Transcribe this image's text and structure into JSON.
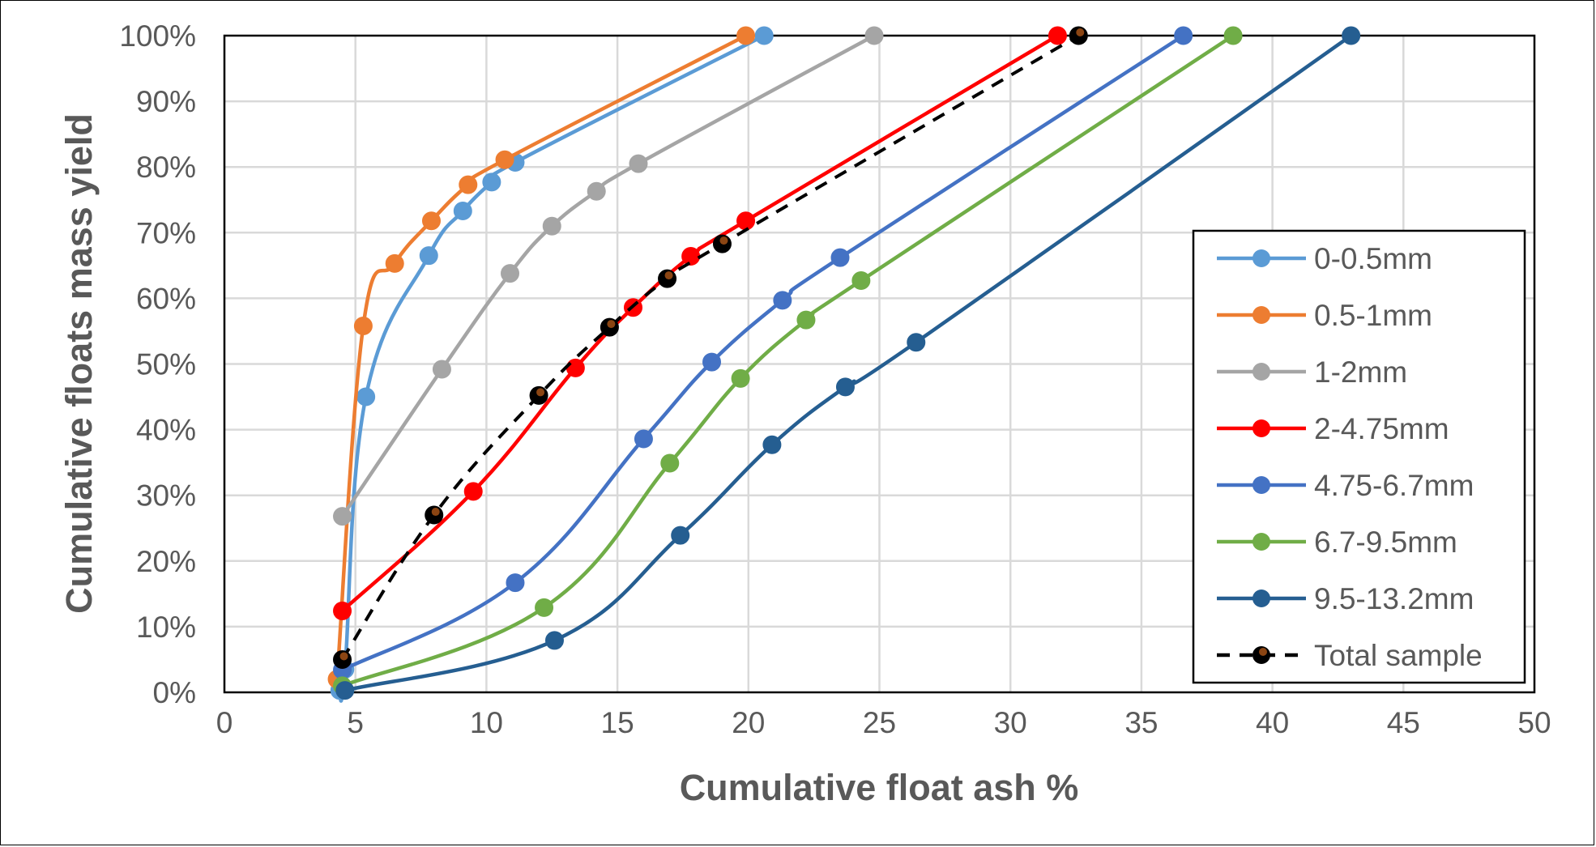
{
  "chart_data": {
    "type": "line",
    "xlabel": "Cumulative float ash %",
    "ylabel": "Cumulative floats mass yield",
    "xlim": [
      0,
      50
    ],
    "ylim": [
      0,
      100
    ],
    "x_ticks": [
      "0",
      "5",
      "10",
      "15",
      "20",
      "25",
      "30",
      "35",
      "40",
      "45",
      "50"
    ],
    "y_ticks": [
      "0%",
      "10%",
      "20%",
      "30%",
      "40%",
      "50%",
      "60%",
      "70%",
      "80%",
      "90%",
      "100%"
    ],
    "grid": true,
    "legend_position": "lower-right",
    "series": [
      {
        "name": "0-0.5mm",
        "color": "#5B9BD5",
        "dashed": false,
        "marker": "#5B9BD5",
        "points": [
          [
            4.4,
            0.3
          ],
          [
            4.6,
            3.5
          ],
          [
            5.4,
            45
          ],
          [
            7.8,
            66.5
          ],
          [
            9.1,
            73.3
          ],
          [
            10.2,
            77.7
          ],
          [
            11.1,
            80.7
          ],
          [
            20.6,
            100
          ]
        ]
      },
      {
        "name": "0.5-1mm",
        "color": "#ED7D31",
        "dashed": false,
        "marker": "#ED7D31",
        "points": [
          [
            4.3,
            2
          ],
          [
            5.3,
            55.8
          ],
          [
            6.5,
            65.3
          ],
          [
            7.9,
            71.8
          ],
          [
            9.3,
            77.3
          ],
          [
            10.7,
            81.1
          ],
          [
            19.9,
            100
          ]
        ]
      },
      {
        "name": "1-2mm",
        "color": "#A5A5A5",
        "dashed": false,
        "marker": "#A5A5A5",
        "points": [
          [
            4.5,
            26.8
          ],
          [
            8.3,
            49.2
          ],
          [
            10.9,
            63.8
          ],
          [
            12.5,
            71
          ],
          [
            14.2,
            76.3
          ],
          [
            15.8,
            80.5
          ],
          [
            24.8,
            100
          ]
        ]
      },
      {
        "name": "2-4.75mm",
        "color": "#FF0000",
        "dashed": false,
        "marker": "#FF0000",
        "points": [
          [
            4.5,
            12.4
          ],
          [
            9.5,
            30.6
          ],
          [
            13.4,
            49.4
          ],
          [
            15.6,
            58.6
          ],
          [
            17.8,
            66.4
          ],
          [
            19.9,
            71.8
          ],
          [
            31.8,
            100
          ]
        ]
      },
      {
        "name": "4.75-6.7mm",
        "color": "#4472C4",
        "dashed": false,
        "marker": "#4472C4",
        "points": [
          [
            4.5,
            3.4
          ],
          [
            11.1,
            16.7
          ],
          [
            16,
            38.6
          ],
          [
            18.6,
            50.3
          ],
          [
            21.3,
            59.7
          ],
          [
            23.5,
            66.2
          ],
          [
            36.6,
            100
          ]
        ]
      },
      {
        "name": "6.7-9.5mm",
        "color": "#70AD47",
        "dashed": false,
        "marker": "#70AD47",
        "points": [
          [
            4.5,
            1
          ],
          [
            12.2,
            12.9
          ],
          [
            17,
            34.9
          ],
          [
            19.7,
            47.8
          ],
          [
            22.2,
            56.7
          ],
          [
            24.3,
            62.7
          ],
          [
            38.5,
            100
          ]
        ]
      },
      {
        "name": "9.5-13.2mm",
        "color": "#255E91",
        "dashed": false,
        "marker": "#255E91",
        "points": [
          [
            4.6,
            0.3
          ],
          [
            12.6,
            7.9
          ],
          [
            17.4,
            23.9
          ],
          [
            20.9,
            37.7
          ],
          [
            23.7,
            46.5
          ],
          [
            26.4,
            53.3
          ],
          [
            43,
            100
          ]
        ]
      },
      {
        "name": "Total sample",
        "color": "#000000",
        "dashed": true,
        "marker": "#000000",
        "marker_center": "#8B4513",
        "points": [
          [
            4.5,
            5
          ],
          [
            8,
            27
          ],
          [
            12,
            45.2
          ],
          [
            14.7,
            55.6
          ],
          [
            16.9,
            63
          ],
          [
            19,
            68.3
          ],
          [
            32.6,
            100
          ]
        ]
      }
    ]
  }
}
